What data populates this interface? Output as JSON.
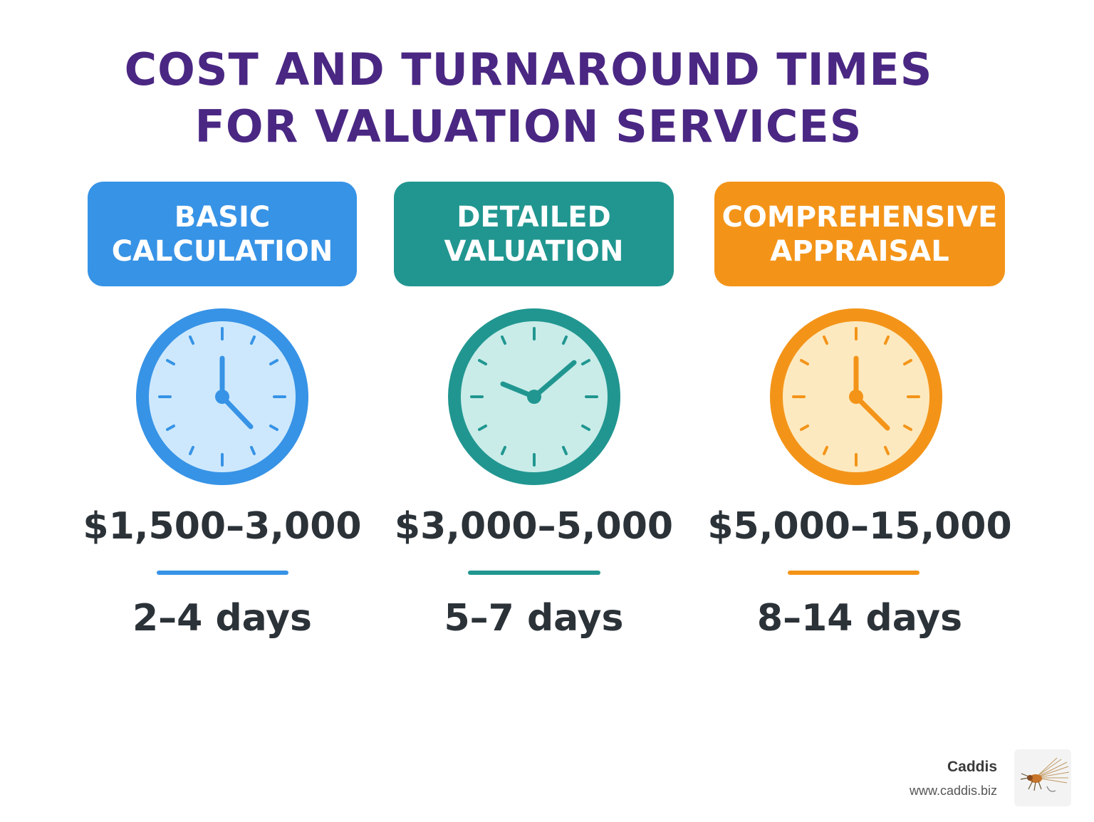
{
  "title": {
    "line1": "COST AND TURNAROUND TIMES",
    "line2": "FOR VALUATION SERVICES"
  },
  "services": [
    {
      "name_line1": "BASIC",
      "name_line2": "CALCULATION",
      "price": "$1,500–3,000",
      "turnaround": "2–4 days",
      "color": "#3793e6",
      "light_color": "#cde8fd",
      "icon": "clock-icon"
    },
    {
      "name_line1": "DETAILED",
      "name_line2": "VALUATION",
      "price": "$3,000–5,000",
      "turnaround": "5–7 days",
      "color": "#219690",
      "light_color": "#c9ece9",
      "icon": "clock-icon"
    },
    {
      "name_line1": "COMPREHENSIVE",
      "name_line2": "APPRAISAL",
      "price": "$5,000–15,000",
      "turnaround": "8–14 days",
      "color": "#f39419",
      "light_color": "#fde9bf",
      "icon": "clock-icon"
    }
  ],
  "branding": {
    "name": "Caddis",
    "url": "www.caddis.biz",
    "logo_icon": "caddis-fly-logo"
  }
}
